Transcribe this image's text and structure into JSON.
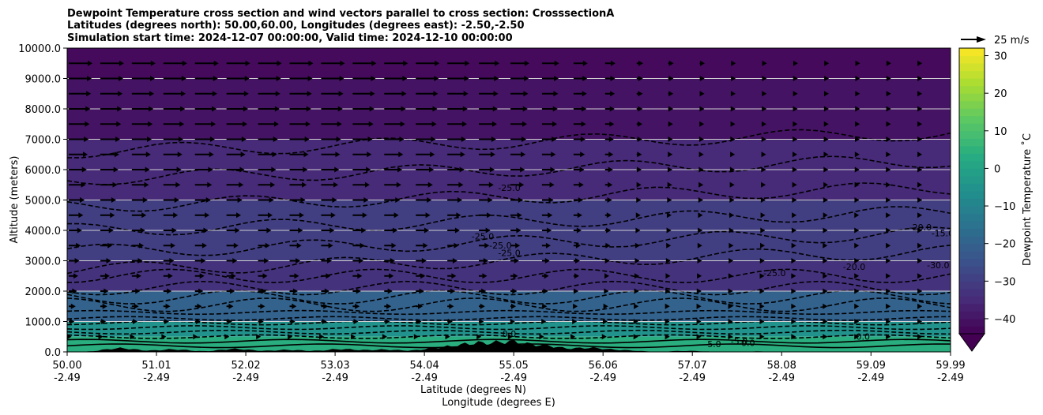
{
  "chart_data": {
    "type": "heatmap",
    "title_lines": [
      "Dewpoint Temperature cross section and wind vectors parallel to cross section: CrosssectionA",
      "Latitudes (degrees north): 50.00,60.00, Longitudes (degrees east): -2.50,-2.50",
      "Simulation start time: 2024-12-07 00:00:00, Valid time: 2024-12-10 00:00:00"
    ],
    "ylabel": "Altitude (meters)",
    "xlabel_lines": [
      "Latitude (degrees N)",
      "Longitude (degrees E)"
    ],
    "ylim": [
      0,
      10000
    ],
    "xlim": [
      50.0,
      59.99
    ],
    "y_ticks": [
      {
        "value": 0,
        "label": "0.0"
      },
      {
        "value": 1000,
        "label": "1000.0"
      },
      {
        "value": 2000,
        "label": "2000.0"
      },
      {
        "value": 3000,
        "label": "3000.0"
      },
      {
        "value": 4000,
        "label": "4000.0"
      },
      {
        "value": 5000,
        "label": "5000.0"
      },
      {
        "value": 6000,
        "label": "6000.0"
      },
      {
        "value": 7000,
        "label": "7000.0"
      },
      {
        "value": 8000,
        "label": "8000.0"
      },
      {
        "value": 9000,
        "label": "9000.0"
      },
      {
        "value": 10000,
        "label": "10000.0"
      }
    ],
    "x_ticks": [
      {
        "value": 50.0,
        "lat": "50.00",
        "lon": "-2.49"
      },
      {
        "value": 51.01,
        "lat": "51.01",
        "lon": "-2.49"
      },
      {
        "value": 52.02,
        "lat": "52.02",
        "lon": "-2.49"
      },
      {
        "value": 53.03,
        "lat": "53.03",
        "lon": "-2.49"
      },
      {
        "value": 54.04,
        "lat": "54.04",
        "lon": "-2.49"
      },
      {
        "value": 55.05,
        "lat": "55.05",
        "lon": "-2.49"
      },
      {
        "value": 56.06,
        "lat": "56.06",
        "lon": "-2.49"
      },
      {
        "value": 57.07,
        "lat": "57.07",
        "lon": "-2.49"
      },
      {
        "value": 58.08,
        "lat": "58.08",
        "lon": "-2.49"
      },
      {
        "value": 59.09,
        "lat": "59.09",
        "lon": "-2.49"
      },
      {
        "value": 59.99,
        "lat": "59.99",
        "lon": "-2.49"
      }
    ],
    "horizontal_gridlines": true,
    "colorbar": {
      "label": "Dewpoint Temperature $^\\circ$C",
      "label_text": "Dewpoint Temperature ˚C",
      "min": -44,
      "max": 32,
      "ticks": [
        -40,
        -30,
        -20,
        -10,
        0,
        10,
        20,
        30
      ],
      "tick_labels": [
        "−40",
        "−30",
        "−20",
        "−10",
        "0",
        "10",
        "20",
        "30"
      ],
      "colormap": "viridis",
      "extend": "min"
    },
    "wind_key": {
      "label": "25 m/s",
      "speed": 25
    },
    "dewpoint_layers": [
      {
        "alt_low": 9000,
        "alt_high": 10000,
        "temp_c": -42
      },
      {
        "alt_low": 7000,
        "alt_high": 9000,
        "temp_c": -40
      },
      {
        "alt_low": 5000,
        "alt_high": 7000,
        "temp_c": -35
      },
      {
        "alt_low": 3000,
        "alt_high": 5000,
        "temp_c": -30
      },
      {
        "alt_low": 2000,
        "alt_high": 3000,
        "temp_c": -33
      },
      {
        "alt_low": 1000,
        "alt_high": 2000,
        "temp_c": -20
      },
      {
        "alt_low": 500,
        "alt_high": 1000,
        "temp_c": -5
      },
      {
        "alt_low": 0,
        "alt_high": 500,
        "temp_c": 4
      }
    ],
    "contour_labels": [
      {
        "text": "-25.0",
        "lat": 55.0,
        "alt": 5300
      },
      {
        "text": "-25.0",
        "lat": 54.7,
        "alt": 3700
      },
      {
        "text": "-25.0",
        "lat": 54.9,
        "alt": 3400
      },
      {
        "text": "-25.0",
        "lat": 55.0,
        "alt": 3150
      },
      {
        "text": "-25.0",
        "lat": 58.0,
        "alt": 2500
      },
      {
        "text": "-20.0",
        "lat": 58.9,
        "alt": 2700
      },
      {
        "text": "-30.0",
        "lat": 59.85,
        "alt": 2750
      },
      {
        "text": "-20.0",
        "lat": 59.65,
        "alt": 4000
      },
      {
        "text": "-15.0",
        "lat": 59.9,
        "alt": 3800
      },
      {
        "text": "0.0",
        "lat": 55.0,
        "alt": 500
      },
      {
        "text": "0.0",
        "lat": 57.7,
        "alt": 200
      },
      {
        "text": "0.0",
        "lat": 59.0,
        "alt": 400
      },
      {
        "text": "-5.0",
        "lat": 57.3,
        "alt": 150
      },
      {
        "text": "-5.0",
        "lat": 57.6,
        "alt": 250
      }
    ],
    "wind": {
      "u_ms_by_altitude": [
        {
          "alt": 9500,
          "u": 25
        },
        {
          "alt": 7500,
          "u": 22
        },
        {
          "alt": 5500,
          "u": 18
        },
        {
          "alt": 4000,
          "u": 14
        },
        {
          "alt": 2500,
          "u": 10
        },
        {
          "alt": 1000,
          "u": 6
        },
        {
          "alt": 500,
          "u": 3
        }
      ],
      "speed_factor_by_lat": [
        {
          "lat": 50.0,
          "f": 1.0
        },
        {
          "lat": 54.0,
          "f": 1.0
        },
        {
          "lat": 55.5,
          "f": 0.7
        },
        {
          "lat": 56.5,
          "f": 0.25
        },
        {
          "lat": 60.0,
          "f": 0.05
        }
      ]
    }
  }
}
